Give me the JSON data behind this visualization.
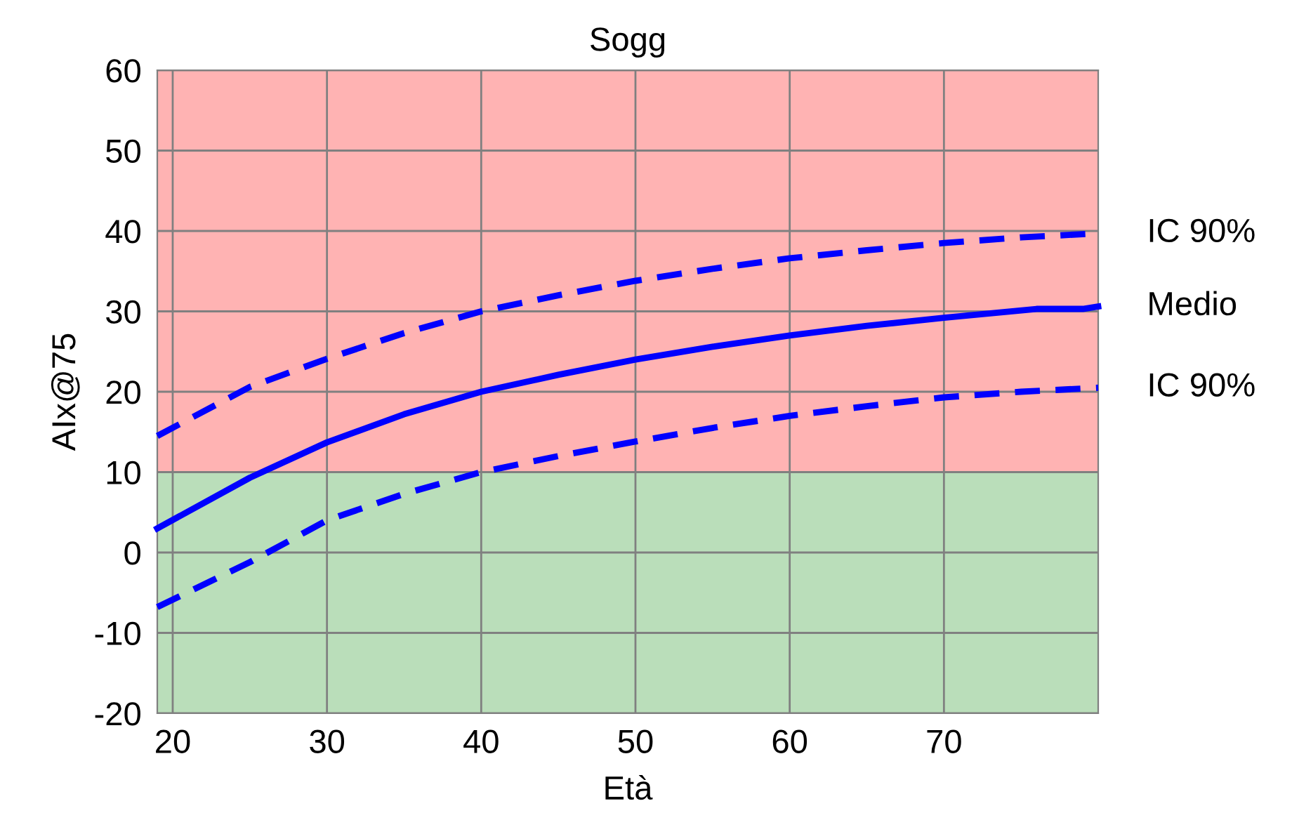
{
  "chart_data": {
    "type": "line",
    "title": "Sogg",
    "xlabel": "Età",
    "ylabel": "AIx@75",
    "xlim": [
      19,
      80
    ],
    "xticks": [
      20,
      30,
      40,
      50,
      60,
      70
    ],
    "ylim": [
      -20,
      60
    ],
    "yticks": [
      -20,
      -10,
      0,
      10,
      20,
      30,
      40,
      50,
      60
    ],
    "grid": true,
    "legend": false,
    "bands": [
      {
        "axis": "y",
        "from": 10,
        "to": 60,
        "color": "#ff8080"
      },
      {
        "axis": "y",
        "from": -20,
        "to": 10,
        "color": "#8cc88c"
      }
    ],
    "series": [
      {
        "name": "IC 90%",
        "color": "#0000ff",
        "line_style": "dashed",
        "x": [
          19,
          25,
          30,
          35,
          40,
          45,
          50,
          55,
          60,
          65,
          70,
          75,
          80
        ],
        "values": [
          14.5,
          20.6,
          24.1,
          27.3,
          30,
          32,
          33.8,
          35.3,
          36.6,
          37.6,
          38.5,
          39.2,
          39.7
        ]
      },
      {
        "name": "Medio",
        "color": "#0000ff",
        "line_style": "solid",
        "x": [
          19,
          25,
          30,
          35,
          40,
          45,
          50,
          55,
          60,
          65,
          70,
          76,
          79,
          80
        ],
        "values": [
          3,
          9.3,
          13.7,
          17.2,
          20,
          22.1,
          24,
          25.6,
          27,
          28.2,
          29.2,
          30.3,
          30.3,
          30.6
        ]
      },
      {
        "name": "IC 90%",
        "color": "#0000ff",
        "line_style": "dashed",
        "x": [
          19,
          25,
          30,
          35,
          40,
          45,
          50,
          55,
          60,
          65,
          70,
          75,
          80
        ],
        "values": [
          -6.8,
          -1.2,
          4,
          7.3,
          10,
          12,
          13.8,
          15.5,
          17,
          18.2,
          19.3,
          20,
          20.5
        ]
      }
    ]
  }
}
